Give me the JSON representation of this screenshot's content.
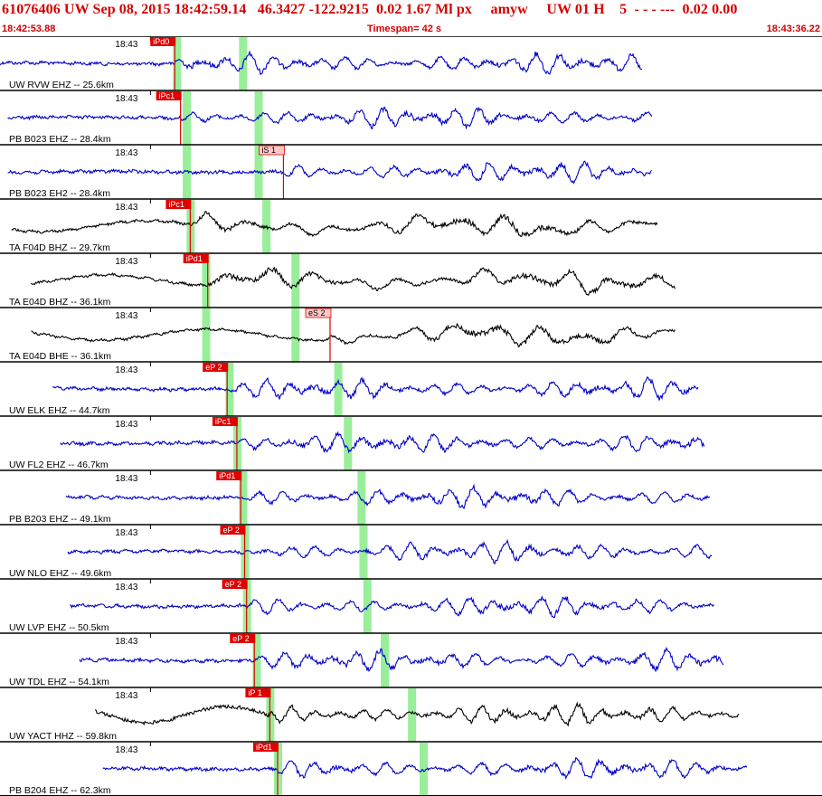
{
  "header": {
    "event_id": "61076406",
    "net": "UW",
    "datetime": "Sep 08, 2015 18:42:59.14",
    "lat": "46.3427",
    "lon": "-122.9215",
    "depth": "0.02",
    "mag": "1.67",
    "mag_type": "Ml",
    "event_type": "px",
    "author": "amyw",
    "version": "UW 01 H",
    "count": "5",
    "dashes": "-  -  - ---",
    "extra1": "0.02",
    "extra2": "0.00",
    "start_time": "18:42:53.88",
    "timespan_label": "Timespan=  42 s",
    "end_time": "18:43:36.22"
  },
  "colors": {
    "header_red": "#d40000",
    "trace_blue": "#0000c8",
    "trace_black": "#000000",
    "pick_fill": "#e00000",
    "pick_pink": "#ffc8c8",
    "window_green": "#99ee99"
  },
  "chart_data": {
    "type": "line",
    "description_units": "x in seconds from window start; time span 42 s",
    "x_range": [
      0,
      42.34
    ],
    "tick_label": "18:43",
    "tick_time_s": 6.12,
    "traces": [
      {
        "label": "UW RVW EHZ -- 25.6km",
        "color": "blue",
        "start": 0.0,
        "end": 33.1,
        "pick": "iPd0",
        "pick_time": 9.0,
        "green1": 9.1,
        "green2": 12.5,
        "style": "hf"
      },
      {
        "label": "PB B023 EHZ -- 28.4km",
        "color": "blue",
        "start": 0.4,
        "end": 33.6,
        "pick": "iPc1",
        "pick_time": 9.3,
        "green1": 9.6,
        "green2": 13.3,
        "style": "hf"
      },
      {
        "label": "PB B023 EH2 -- 28.4km",
        "color": "blue",
        "start": 0.4,
        "end": 33.6,
        "pick": "iS 1",
        "pick_time": 14.6,
        "pick2": true,
        "green1": 9.6,
        "green2": 13.3,
        "style": "hf"
      },
      {
        "label": "TA F04D BHZ -- 29.7km",
        "color": "black",
        "start": 0.6,
        "end": 33.9,
        "pick": "iPc1",
        "pick_time": 9.8,
        "green1": 9.8,
        "green2": 13.7,
        "style": "lf"
      },
      {
        "label": "TA E04D BHZ -- 36.1km",
        "color": "black",
        "start": 1.6,
        "end": 34.8,
        "pick": "iPd1",
        "pick_time": 10.7,
        "green1": 10.6,
        "green2": 15.2,
        "style": "lf"
      },
      {
        "label": "TA E04D BHE -- 36.1km",
        "color": "black",
        "start": 1.6,
        "end": 34.8,
        "pick": "eS 2",
        "pick_time": 17.0,
        "pick2": true,
        "green1": 10.6,
        "green2": 15.2,
        "style": "lf"
      },
      {
        "label": "UW ELK EHZ -- 44.7km",
        "color": "blue",
        "start": 2.7,
        "end": 36.0,
        "pick": "eP 2",
        "pick_time": 11.7,
        "green1": 11.8,
        "green2": 17.4,
        "style": "hf"
      },
      {
        "label": "UW FL2 EHZ -- 46.7km",
        "color": "blue",
        "start": 3.1,
        "end": 36.3,
        "pick": "iPc1",
        "pick_time": 12.2,
        "green1": 12.2,
        "green2": 17.9,
        "style": "hf"
      },
      {
        "label": "PB B203 EHZ -- 49.1km",
        "color": "blue",
        "start": 3.4,
        "end": 36.6,
        "pick": "iPd1",
        "pick_time": 12.4,
        "green1": 12.5,
        "green2": 18.6,
        "style": "hf"
      },
      {
        "label": "UW NLO EHZ -- 49.6km",
        "color": "blue",
        "start": 3.5,
        "end": 36.7,
        "pick": "eP 2",
        "pick_time": 12.6,
        "green1": 12.6,
        "green2": 18.7,
        "style": "hf"
      },
      {
        "label": "UW LVP EHZ -- 50.5km",
        "color": "blue",
        "start": 3.6,
        "end": 36.8,
        "pick": "eP 2",
        "pick_time": 12.7,
        "green1": 12.7,
        "green2": 18.9,
        "style": "hf"
      },
      {
        "label": "UW TDL EHZ -- 54.1km",
        "color": "blue",
        "start": 4.1,
        "end": 37.3,
        "pick": "eP 2",
        "pick_time": 13.1,
        "green1": 13.2,
        "green2": 19.8,
        "style": "hf"
      },
      {
        "label": "UW YACT HHZ -- 59.8km",
        "color": "black",
        "start": 4.9,
        "end": 38.1,
        "pick": "iP 1",
        "pick_time": 13.9,
        "green1": 13.9,
        "green2": 21.2,
        "style": "mix"
      },
      {
        "label": "PB B204 EHZ -- 62.3km",
        "color": "blue",
        "start": 5.3,
        "end": 38.5,
        "pick": "iPd1",
        "pick_time": 14.3,
        "green1": 14.3,
        "green2": 21.8,
        "style": "hf"
      }
    ]
  }
}
